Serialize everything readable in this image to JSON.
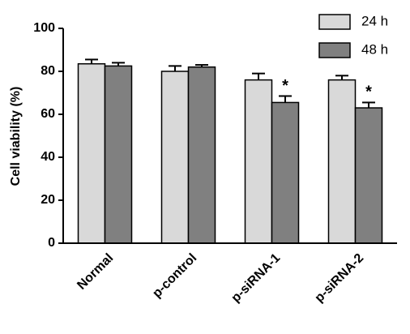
{
  "chart_data": {
    "type": "bar",
    "y_label": "Cell viability (%)",
    "categories": [
      "Normal",
      "p-control",
      "p-siRNA-1",
      "p-siRNA-2"
    ],
    "series": [
      {
        "name": "24 h",
        "color": "#d9d9d9",
        "values": [
          83.5,
          80,
          76,
          76
        ],
        "errors": [
          2,
          2.5,
          3,
          2
        ],
        "significance": [
          null,
          null,
          null,
          null
        ]
      },
      {
        "name": "48 h",
        "color": "#808080",
        "values": [
          82.5,
          82,
          65.5,
          63
        ],
        "errors": [
          1.5,
          1,
          3,
          2.5
        ],
        "significance": [
          null,
          null,
          "*",
          "*"
        ]
      }
    ],
    "ylim": [
      0,
      100
    ],
    "yticks": [
      0,
      20,
      40,
      60,
      80,
      100
    ],
    "grid": false,
    "legend": "top-right"
  }
}
